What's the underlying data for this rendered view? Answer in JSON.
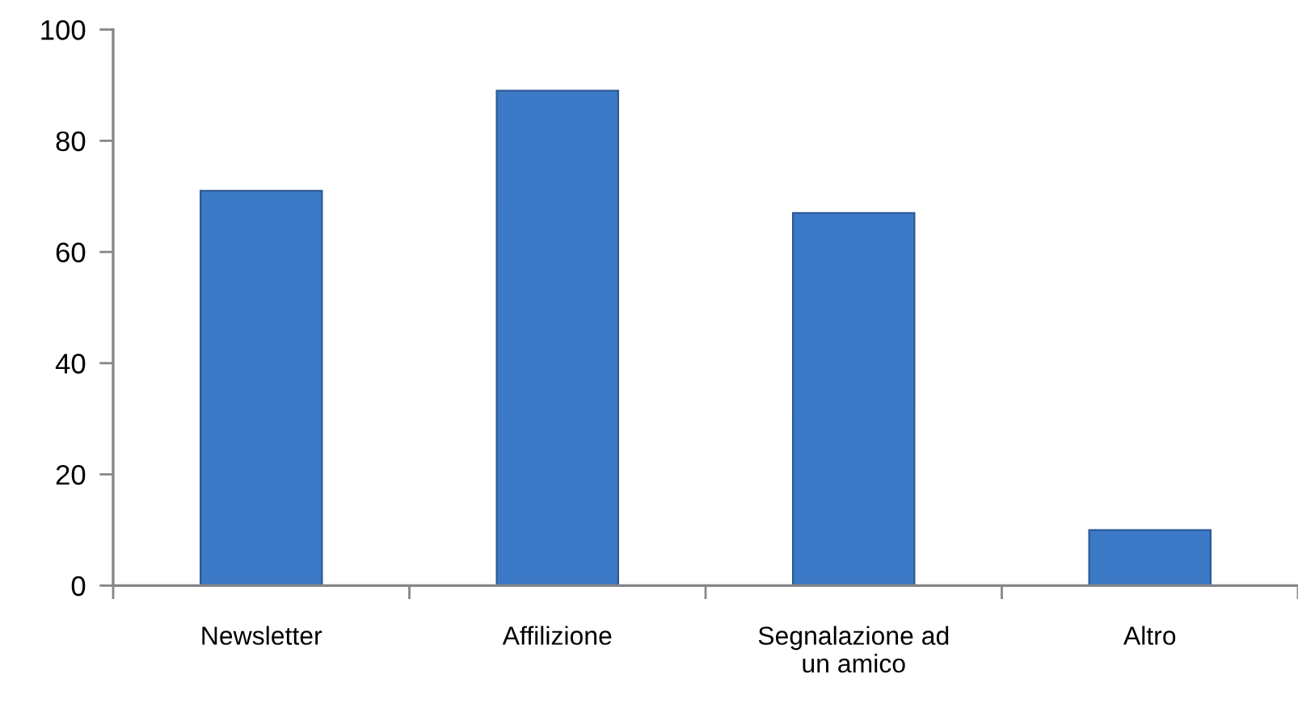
{
  "chart_data": {
    "type": "bar",
    "categories": [
      "Newsletter",
      "Affilizione",
      "Segnalazione ad\nun amico",
      "Altro"
    ],
    "values": [
      71,
      89,
      67,
      10
    ],
    "color": "#3c79c6",
    "ylim": [
      0,
      100
    ],
    "yticks": [
      0,
      20,
      40,
      60,
      80,
      100
    ],
    "grid": false,
    "legend": false
  }
}
